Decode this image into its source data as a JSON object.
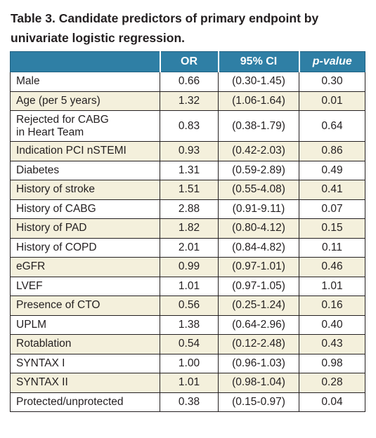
{
  "caption": "Table 3. Candidate predictors of primary endpoint by univariate logistic regression.",
  "headers": {
    "predictor": "",
    "or": "OR",
    "ci": "95% CI",
    "p": "p-value"
  },
  "rows": [
    {
      "label": "Male",
      "or": "0.66",
      "ci": "(0.30-1.45)",
      "p": "0.30"
    },
    {
      "label": "Age (per 5 years)",
      "or": "1.32",
      "ci": "(1.06-1.64)",
      "p": "0.01"
    },
    {
      "label": "Rejected for CABG",
      "label2": "in Heart Team",
      "or": "0.83",
      "ci": "(0.38-1.79)",
      "p": "0.64"
    },
    {
      "label": "Indication PCI nSTEMI",
      "or": "0.93",
      "ci": "(0.42-2.03)",
      "p": "0.86"
    },
    {
      "label": "Diabetes",
      "or": "1.31",
      "ci": "(0.59-2.89)",
      "p": "0.49"
    },
    {
      "label": "History of stroke",
      "or": "1.51",
      "ci": "(0.55-4.08)",
      "p": "0.41"
    },
    {
      "label": "History of CABG",
      "or": "2.88",
      "ci": "(0.91-9.11)",
      "p": "0.07"
    },
    {
      "label": "History of PAD",
      "or": "1.82",
      "ci": "(0.80-4.12)",
      "p": "0.15"
    },
    {
      "label": "History of COPD",
      "or": "2.01",
      "ci": "(0.84-4.82)",
      "p": "0.11"
    },
    {
      "label": "eGFR",
      "or": "0.99",
      "ci": "(0.97-1.01)",
      "p": "0.46"
    },
    {
      "label": "LVEF",
      "or": "1.01",
      "ci": "(0.97-1.05)",
      "p": "1.01"
    },
    {
      "label": "Presence of CTO",
      "or": "0.56",
      "ci": "(0.25-1.24)",
      "p": "0.16"
    },
    {
      "label": "UPLM",
      "or": "1.38",
      "ci": "(0.64-2.96)",
      "p": "0.40"
    },
    {
      "label": "Rotablation",
      "or": "0.54",
      "ci": "(0.12-2.48)",
      "p": "0.43"
    },
    {
      "label": "SYNTAX I",
      "or": "1.00",
      "ci": "(0.96-1.03)",
      "p": "0.98"
    },
    {
      "label": "SYNTAX II",
      "or": "1.01",
      "ci": "(0.98-1.04)",
      "p": "0.28"
    },
    {
      "label": "Protected/unprotected",
      "or": "0.38",
      "ci": "(0.15-0.97)",
      "p": "0.04"
    }
  ],
  "colors": {
    "header_bg": "#2f7fa5",
    "header_text": "#ffffff",
    "alt_row_bg": "#f4f0dc",
    "border": "#231f20"
  }
}
